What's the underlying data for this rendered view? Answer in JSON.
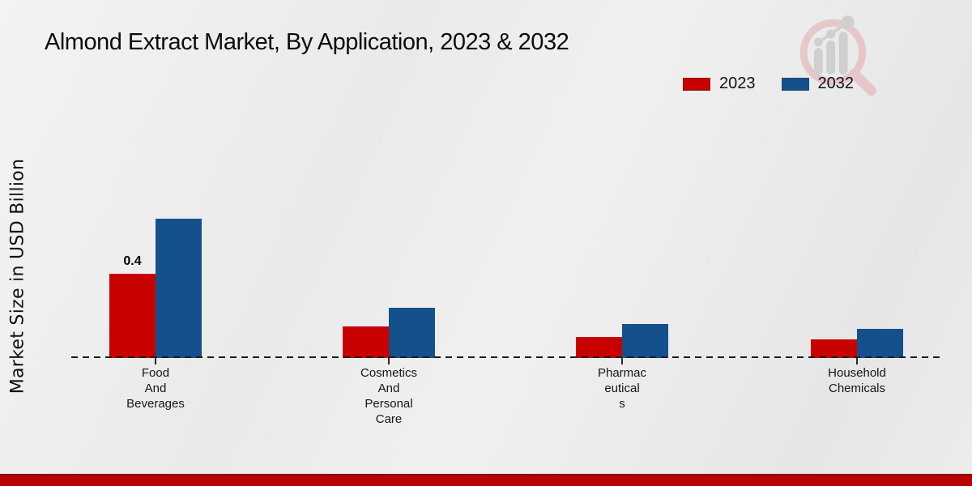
{
  "title": "Almond Extract Market, By Application, 2023 & 2032",
  "chart_data": {
    "type": "bar",
    "title": "Almond Extract Market, By Application, 2023 & 2032",
    "xlabel": "",
    "ylabel": "Market Size in USD Billion",
    "ylim": [
      0,
      0.8
    ],
    "grid": false,
    "legend_position": "top-right",
    "baseline_style": "dashed",
    "categories": [
      "Food And Beverages",
      "Cosmetics And Personal Care",
      "Pharmaceuticals",
      "Household Chemicals"
    ],
    "category_label_lines": [
      [
        "Food",
        "And",
        "Beverages"
      ],
      [
        "Cosmetics",
        "And",
        "Personal",
        "Care"
      ],
      [
        "Pharmac",
        "eutical",
        "s"
      ],
      [
        "Household",
        "Chemicals"
      ]
    ],
    "series": [
      {
        "name": "2023",
        "color": "#c80101",
        "values": [
          0.4,
          0.15,
          0.1,
          0.09
        ]
      },
      {
        "name": "2032",
        "color": "#14508c",
        "values": [
          0.66,
          0.24,
          0.16,
          0.14
        ]
      }
    ],
    "annotations": [
      {
        "series": "2023",
        "category": "Food And Beverages",
        "text": "0.4"
      }
    ]
  },
  "watermark": {
    "icon": "magnifier-bar-chart-logo",
    "ring_color": "#e6c2c4",
    "glyph_color": "#cbcbcb"
  },
  "footer": {
    "strip_color": "#b60404"
  }
}
